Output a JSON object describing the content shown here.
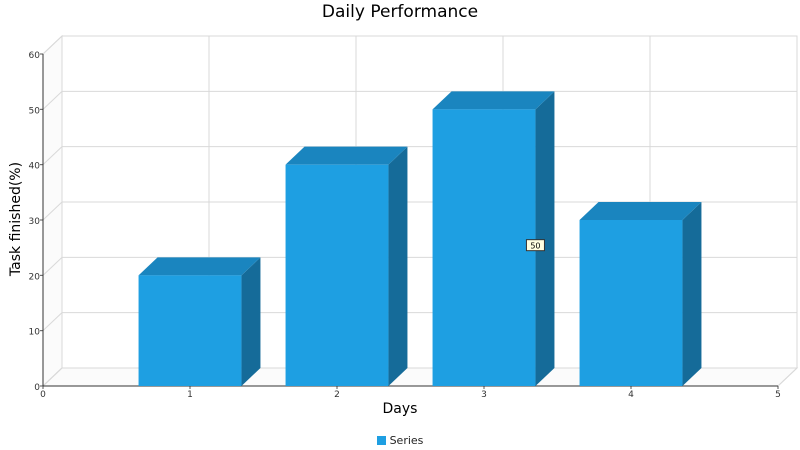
{
  "colors": {
    "bar_front": "#1e9fe2",
    "bar_top": "#1a85bf",
    "bar_side": "#156b99",
    "grid": "#d9d9d9"
  },
  "chart_data": {
    "type": "bar",
    "title": "Daily Performance",
    "xlabel": "Days",
    "ylabel": "Task finished(%)",
    "x_ticks": [
      "0",
      "1",
      "2",
      "3",
      "4",
      "5"
    ],
    "y_ticks": [
      "0",
      "10",
      "20",
      "30",
      "40",
      "50",
      "60"
    ],
    "xlim": [
      0,
      5
    ],
    "ylim": [
      0,
      60
    ],
    "grid": true,
    "legend_position": "bottom",
    "categories": [
      1,
      2,
      3,
      4
    ],
    "series": [
      {
        "name": "Series",
        "values": [
          20,
          40,
          50,
          30
        ]
      }
    ],
    "annotations": [
      {
        "category": 3,
        "text": "50"
      }
    ]
  }
}
